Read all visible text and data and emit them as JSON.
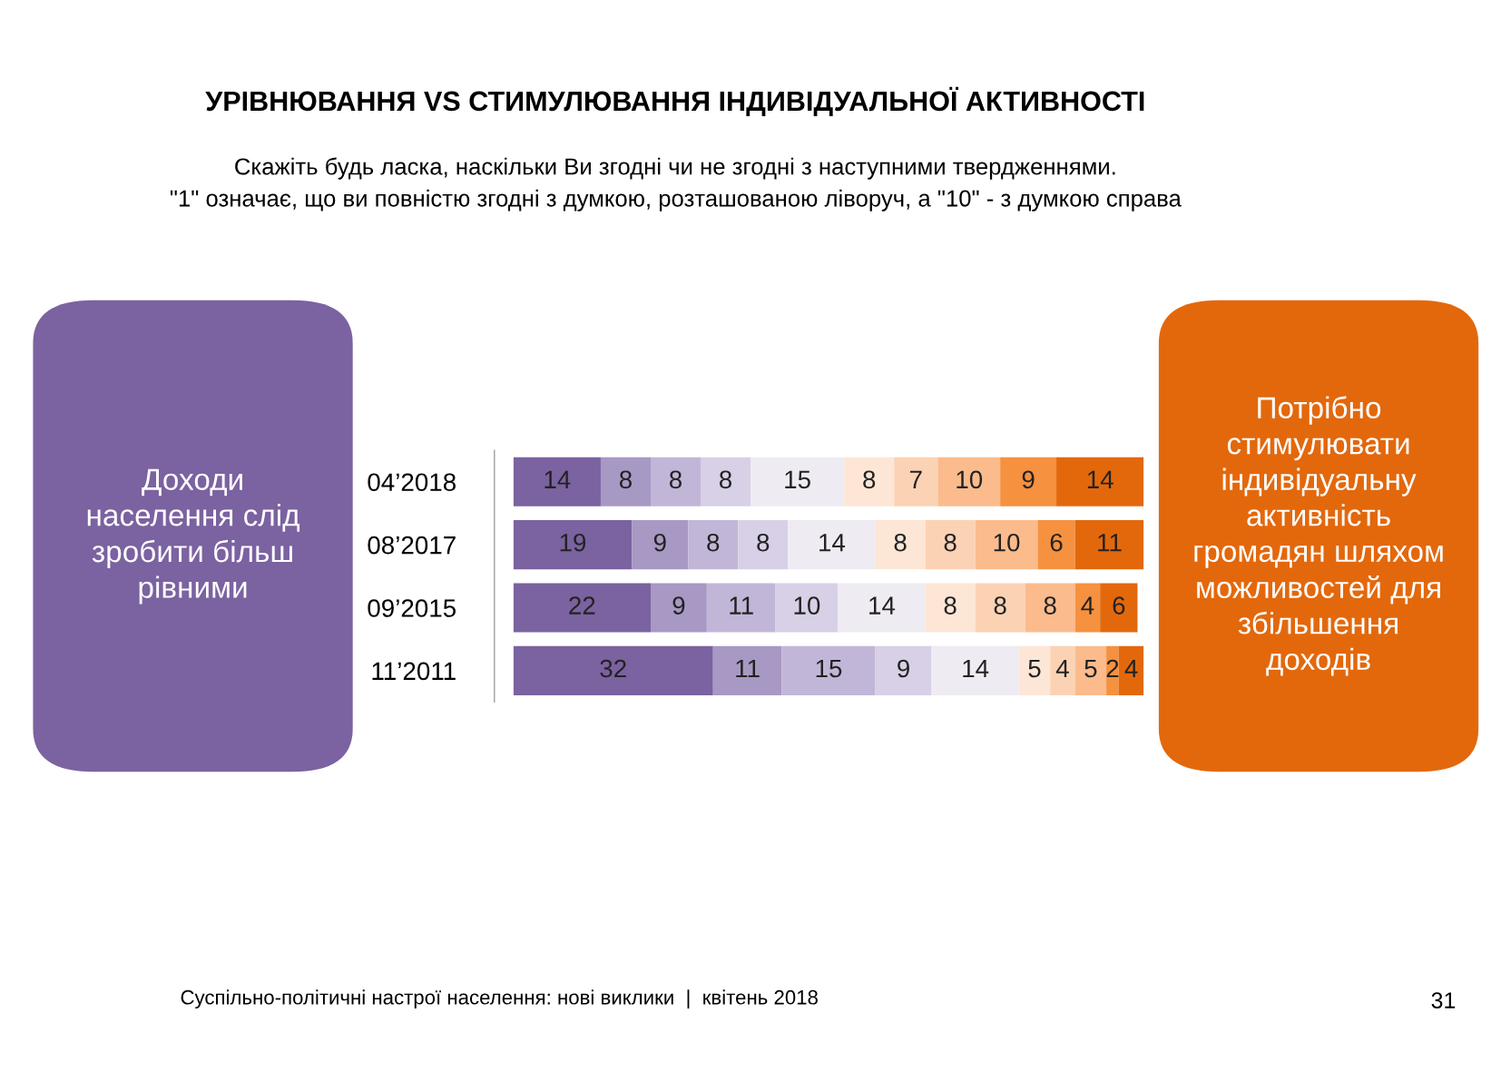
{
  "chart_data": {
    "type": "bar",
    "orientation": "horizontal",
    "stacked": true,
    "data_labels": true,
    "tick_labels": "y",
    "grid": false,
    "legend": false,
    "title": "УРІВНЮВАННЯ VS СТИМУЛЮВАННЯ ІНДИВІДУАЛЬНОЇ АКТИВНОСТІ",
    "subtitle": "Скажіть будь ласка, наскільки Ви згодні чи не згодні з наступними твердженнями.\n\"1\" означає, що ви повністю згодні з думкою, розташованою ліворуч, а \"10\" - з думкою справа",
    "categories": [
      "04’2018",
      "08’2017",
      "09’2015",
      "11’2011"
    ],
    "series": [
      {
        "color": "#7b62a0",
        "values": [
          14,
          19,
          22,
          32
        ]
      },
      {
        "color": "#a898c4",
        "values": [
          8,
          9,
          9,
          11
        ]
      },
      {
        "color": "#c2b6d8",
        "values": [
          8,
          8,
          11,
          15
        ]
      },
      {
        "color": "#d8d0e6",
        "values": [
          8,
          8,
          10,
          9
        ]
      },
      {
        "color": "#eeebf3",
        "values": [
          15,
          14,
          14,
          14
        ]
      },
      {
        "color": "#fde6d6",
        "values": [
          8,
          8,
          8,
          5
        ]
      },
      {
        "color": "#fcd2b4",
        "values": [
          7,
          8,
          8,
          4
        ]
      },
      {
        "color": "#fbbb8c",
        "values": [
          10,
          10,
          8,
          5
        ]
      },
      {
        "color": "#f5913f",
        "values": [
          9,
          6,
          4,
          2
        ]
      },
      {
        "color": "#e3680c",
        "values": [
          14,
          11,
          6,
          4
        ]
      }
    ],
    "annotations": [
      "Доходи\nнаселення слід\nзробити більш\nрівними",
      "Потрібно\nстимулювати\nіндивідуальну\nактивність\nгромадян шляхом\nможливостей для\nзбільшення\nдоходів",
      "Суспільно-політичні настрої населення: нові виклики  |  квітень 2018",
      "31"
    ]
  }
}
